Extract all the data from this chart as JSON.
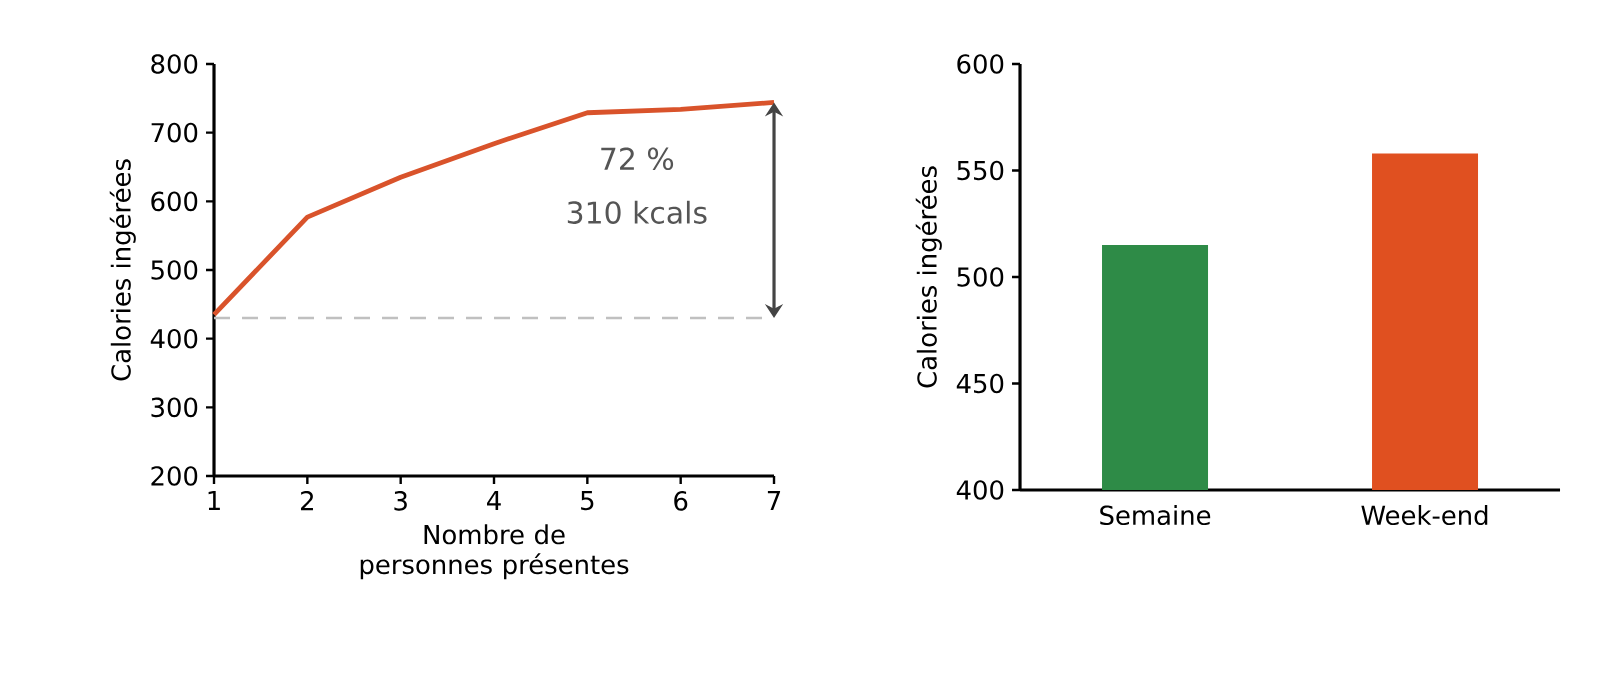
{
  "chart_data": [
    {
      "type": "line",
      "xlabel": "Nombre de personnes présentes",
      "ylabel": "Calories ingérées",
      "x": [
        1,
        2,
        3,
        4,
        5,
        6,
        7
      ],
      "series": [
        {
          "color": "#d9532b",
          "values": [
            435,
            577,
            635,
            684,
            729,
            734,
            744
          ]
        }
      ],
      "xlim": [
        1,
        7
      ],
      "xticks": [
        1,
        2,
        3,
        4,
        5,
        6,
        7
      ],
      "ylim": [
        200,
        800
      ],
      "yticks": [
        200,
        300,
        400,
        500,
        600,
        700,
        800
      ],
      "ref_lines": [
        {
          "axis": "y",
          "value": 430,
          "color": "#c0c0c0",
          "line_style": "dashed"
        }
      ],
      "annotations": [
        "72 %",
        "310 kcals"
      ],
      "grid": false,
      "marker": "none",
      "line_style": "solid"
    },
    {
      "type": "bar",
      "ylabel": "Calories ingérées",
      "categories": [
        "Semaine",
        "Week-end"
      ],
      "values": [
        515,
        558
      ],
      "colors": [
        "#2e8b47",
        "#e05020"
      ],
      "ylim": [
        400,
        600
      ],
      "yticks": [
        400,
        450,
        500,
        550,
        600
      ],
      "grid": false
    }
  ]
}
